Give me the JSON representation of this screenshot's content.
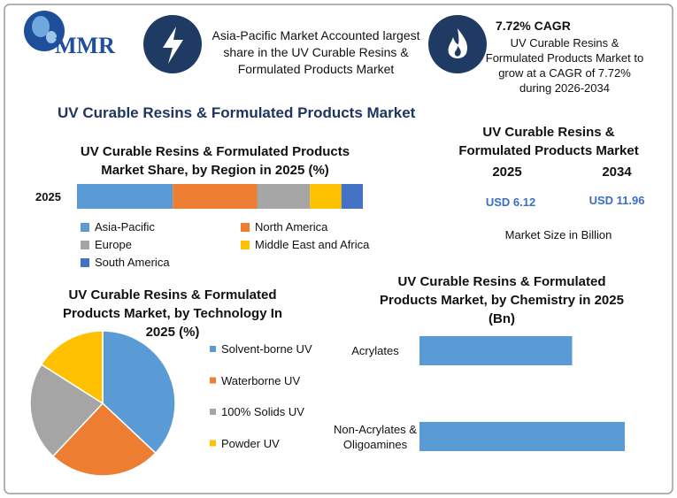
{
  "header": {
    "logo": "MMR",
    "insight": "Asia-Pacific Market Accounted largest share in the UV Curable Resins & Formulated Products Market",
    "cagr_title": "7.72% CAGR",
    "cagr_text": "UV Curable Resins & Formulated Products Market to grow at a CAGR of 7.72% during 2026-2034"
  },
  "title": "UV Curable Resins & Formulated Products Market",
  "market_size": {
    "title": "UV Curable Resins & Formulated Products Market",
    "years": [
      "2025",
      "2034"
    ],
    "values": [
      "USD 6.12",
      "USD 11.96"
    ],
    "note": "Market Size in Billion"
  },
  "chart_data": [
    {
      "type": "stacked-bar",
      "title": "UV Curable Resins & Formulated Products Market Share, by Region in 2025 (%)",
      "categories": [
        "2025"
      ],
      "series": [
        {
          "name": "Asia-Pacific",
          "color": "#5b9bd5",
          "values": [
            33.5
          ]
        },
        {
          "name": "North America",
          "color": "#ed7d31",
          "values": [
            29.5
          ]
        },
        {
          "name": "Europe",
          "color": "#a5a5a5",
          "values": [
            18.5
          ]
        },
        {
          "name": "Middle East and Africa",
          "color": "#ffc000",
          "values": [
            11
          ]
        },
        {
          "name": "South America",
          "color": "#4472c4",
          "values": [
            7.5
          ]
        }
      ]
    },
    {
      "type": "pie",
      "title": "UV Curable Resins & Formulated Products Market, by Technology In 2025 (%)",
      "categories": [
        "Solvent-borne UV",
        "Waterborne UV",
        "100% Solids UV",
        "Powder UV"
      ],
      "values": [
        37,
        25,
        22,
        16
      ],
      "colors": [
        "#5b9bd5",
        "#ed7d31",
        "#a5a5a5",
        "#ffc000"
      ]
    },
    {
      "type": "hbar",
      "title": "UV Curable Resins & Formulated Products Market, by Chemistry in 2025 (Bn)",
      "categories": [
        "Acrylates",
        "Non-Acrylates & Oligoamines"
      ],
      "values": [
        2.61,
        3.51
      ],
      "color": "#5b9bd5"
    }
  ]
}
